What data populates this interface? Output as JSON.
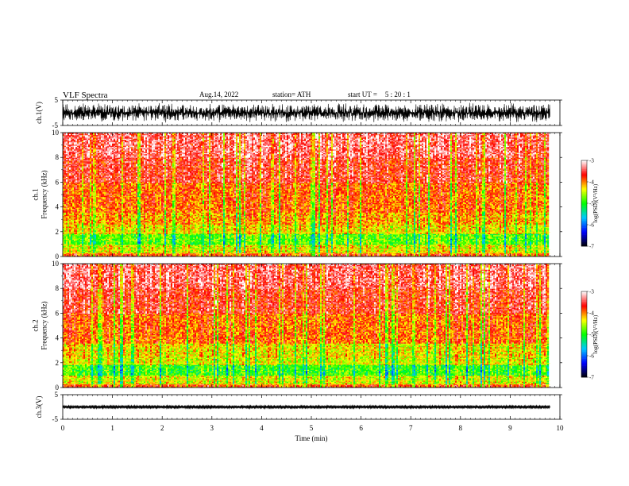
{
  "header": {
    "title": "VLF  Spectra",
    "date": "Aug.14, 2022",
    "station": "station= ATH",
    "start_label": "start  UT  =",
    "start_value": "5  : 20 : 1"
  },
  "chart_data": [
    {
      "type": "line",
      "panel": "ch1-waveform",
      "ylabel": "ch.1(V)",
      "ylim": [
        -5,
        5
      ],
      "yticks": [
        "5",
        "-5"
      ],
      "xlim": [
        0,
        10
      ],
      "description_values": {
        "amplitude_min": -4,
        "amplitude_max": 4,
        "data_end_min": 9.8
      }
    },
    {
      "type": "heatmap",
      "panel": "ch1-spectrogram",
      "ylabel": "ch.1\nFrequency  (kHz)",
      "ylim": [
        0,
        10
      ],
      "yticks": [
        "0",
        "2",
        "4",
        "6",
        "8",
        "10"
      ],
      "xlim": [
        0,
        10
      ],
      "data_end_min": 9.8,
      "bands": [
        {
          "f_low": 0.0,
          "f_high": 0.3,
          "level": -3.8
        },
        {
          "f_low": 0.3,
          "f_high": 1.0,
          "level": -4.4
        },
        {
          "f_low": 1.0,
          "f_high": 1.8,
          "level": -4.8
        },
        {
          "f_low": 1.8,
          "f_high": 2.6,
          "level": -4.3
        },
        {
          "f_low": 2.6,
          "f_high": 3.6,
          "level": -4.1
        },
        {
          "f_low": 3.6,
          "f_high": 6.0,
          "level": -3.9
        },
        {
          "f_low": 6.0,
          "f_high": 8.0,
          "level": -3.6
        },
        {
          "f_low": 8.0,
          "f_high": 10.0,
          "level": -3.4
        }
      ],
      "colorbar": {
        "label": "log(PSD)(V²/Hz)",
        "range": [
          -7,
          -3
        ],
        "ticks": [
          "-3",
          "-4",
          "-5",
          "-6",
          "-7"
        ]
      }
    },
    {
      "type": "heatmap",
      "panel": "ch2-spectrogram",
      "ylabel": "ch.2\nFrequency  (kHz)",
      "ylim": [
        0,
        10
      ],
      "yticks": [
        "0",
        "2",
        "4",
        "6",
        "8",
        "10"
      ],
      "xlim": [
        0,
        10
      ],
      "data_end_min": 9.8,
      "bands": [
        {
          "f_low": 0.0,
          "f_high": 0.3,
          "level": -3.8
        },
        {
          "f_low": 0.3,
          "f_high": 1.0,
          "level": -4.4
        },
        {
          "f_low": 1.0,
          "f_high": 1.8,
          "level": -4.9
        },
        {
          "f_low": 1.8,
          "f_high": 2.4,
          "level": -4.4
        },
        {
          "f_low": 2.4,
          "f_high": 3.6,
          "level": -4.3
        },
        {
          "f_low": 3.6,
          "f_high": 6.0,
          "level": -3.9
        },
        {
          "f_low": 6.0,
          "f_high": 8.0,
          "level": -3.6
        },
        {
          "f_low": 8.0,
          "f_high": 10.0,
          "level": -3.4
        }
      ],
      "colorbar": {
        "label": "log(PSD)(V²/Hz)",
        "range": [
          -7,
          -3
        ],
        "ticks": [
          "-3",
          "-4",
          "-5",
          "-6",
          "-7"
        ]
      }
    },
    {
      "type": "line",
      "panel": "ch3-waveform",
      "ylabel": "ch.3(V)",
      "ylim": [
        -5,
        5
      ],
      "yticks": [
        "5",
        "-5"
      ],
      "xlim": [
        0,
        10
      ],
      "xlabel": "Time  (min)",
      "xticks": [
        "0",
        "1",
        "2",
        "3",
        "4",
        "5",
        "6",
        "7",
        "8",
        "9",
        "10"
      ],
      "description_values": {
        "level": 0,
        "amplitude": 0.4,
        "data_end_min": 9.8
      }
    }
  ],
  "colors": {
    "colormap": [
      "#000000",
      "#0000ff",
      "#00c8ff",
      "#00ff00",
      "#ffff00",
      "#ff0000",
      "#ffffff"
    ]
  }
}
